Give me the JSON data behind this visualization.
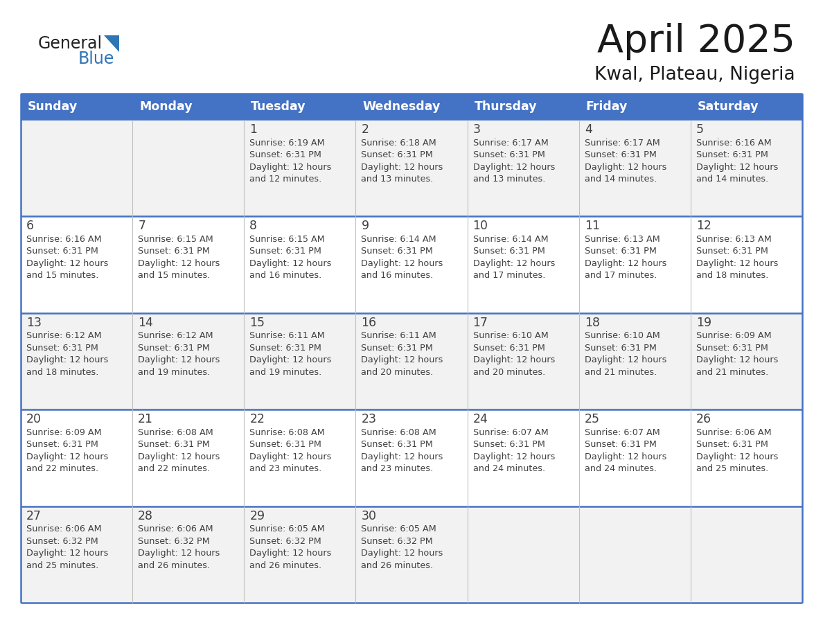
{
  "title": "April 2025",
  "subtitle": "Kwal, Plateau, Nigeria",
  "days_of_week": [
    "Sunday",
    "Monday",
    "Tuesday",
    "Wednesday",
    "Thursday",
    "Friday",
    "Saturday"
  ],
  "header_bg_color": "#4472C4",
  "header_text_color": "#FFFFFF",
  "row_color_even": "#F2F2F2",
  "row_color_odd": "#FFFFFF",
  "border_color": "#4472C4",
  "cell_divider_color": "#C0C0C0",
  "text_color": "#404040",
  "logo_general_color": "#222222",
  "logo_blue_color": "#2E75B6",
  "calendar_data": [
    [
      {
        "day": null,
        "sunrise": null,
        "sunset": null,
        "daylight": null
      },
      {
        "day": null,
        "sunrise": null,
        "sunset": null,
        "daylight": null
      },
      {
        "day": 1,
        "sunrise": "6:19 AM",
        "sunset": "6:31 PM",
        "daylight": "12 hours\nand 12 minutes."
      },
      {
        "day": 2,
        "sunrise": "6:18 AM",
        "sunset": "6:31 PM",
        "daylight": "12 hours\nand 13 minutes."
      },
      {
        "day": 3,
        "sunrise": "6:17 AM",
        "sunset": "6:31 PM",
        "daylight": "12 hours\nand 13 minutes."
      },
      {
        "day": 4,
        "sunrise": "6:17 AM",
        "sunset": "6:31 PM",
        "daylight": "12 hours\nand 14 minutes."
      },
      {
        "day": 5,
        "sunrise": "6:16 AM",
        "sunset": "6:31 PM",
        "daylight": "12 hours\nand 14 minutes."
      }
    ],
    [
      {
        "day": 6,
        "sunrise": "6:16 AM",
        "sunset": "6:31 PM",
        "daylight": "12 hours\nand 15 minutes."
      },
      {
        "day": 7,
        "sunrise": "6:15 AM",
        "sunset": "6:31 PM",
        "daylight": "12 hours\nand 15 minutes."
      },
      {
        "day": 8,
        "sunrise": "6:15 AM",
        "sunset": "6:31 PM",
        "daylight": "12 hours\nand 16 minutes."
      },
      {
        "day": 9,
        "sunrise": "6:14 AM",
        "sunset": "6:31 PM",
        "daylight": "12 hours\nand 16 minutes."
      },
      {
        "day": 10,
        "sunrise": "6:14 AM",
        "sunset": "6:31 PM",
        "daylight": "12 hours\nand 17 minutes."
      },
      {
        "day": 11,
        "sunrise": "6:13 AM",
        "sunset": "6:31 PM",
        "daylight": "12 hours\nand 17 minutes."
      },
      {
        "day": 12,
        "sunrise": "6:13 AM",
        "sunset": "6:31 PM",
        "daylight": "12 hours\nand 18 minutes."
      }
    ],
    [
      {
        "day": 13,
        "sunrise": "6:12 AM",
        "sunset": "6:31 PM",
        "daylight": "12 hours\nand 18 minutes."
      },
      {
        "day": 14,
        "sunrise": "6:12 AM",
        "sunset": "6:31 PM",
        "daylight": "12 hours\nand 19 minutes."
      },
      {
        "day": 15,
        "sunrise": "6:11 AM",
        "sunset": "6:31 PM",
        "daylight": "12 hours\nand 19 minutes."
      },
      {
        "day": 16,
        "sunrise": "6:11 AM",
        "sunset": "6:31 PM",
        "daylight": "12 hours\nand 20 minutes."
      },
      {
        "day": 17,
        "sunrise": "6:10 AM",
        "sunset": "6:31 PM",
        "daylight": "12 hours\nand 20 minutes."
      },
      {
        "day": 18,
        "sunrise": "6:10 AM",
        "sunset": "6:31 PM",
        "daylight": "12 hours\nand 21 minutes."
      },
      {
        "day": 19,
        "sunrise": "6:09 AM",
        "sunset": "6:31 PM",
        "daylight": "12 hours\nand 21 minutes."
      }
    ],
    [
      {
        "day": 20,
        "sunrise": "6:09 AM",
        "sunset": "6:31 PM",
        "daylight": "12 hours\nand 22 minutes."
      },
      {
        "day": 21,
        "sunrise": "6:08 AM",
        "sunset": "6:31 PM",
        "daylight": "12 hours\nand 22 minutes."
      },
      {
        "day": 22,
        "sunrise": "6:08 AM",
        "sunset": "6:31 PM",
        "daylight": "12 hours\nand 23 minutes."
      },
      {
        "day": 23,
        "sunrise": "6:08 AM",
        "sunset": "6:31 PM",
        "daylight": "12 hours\nand 23 minutes."
      },
      {
        "day": 24,
        "sunrise": "6:07 AM",
        "sunset": "6:31 PM",
        "daylight": "12 hours\nand 24 minutes."
      },
      {
        "day": 25,
        "sunrise": "6:07 AM",
        "sunset": "6:31 PM",
        "daylight": "12 hours\nand 24 minutes."
      },
      {
        "day": 26,
        "sunrise": "6:06 AM",
        "sunset": "6:31 PM",
        "daylight": "12 hours\nand 25 minutes."
      }
    ],
    [
      {
        "day": 27,
        "sunrise": "6:06 AM",
        "sunset": "6:32 PM",
        "daylight": "12 hours\nand 25 minutes."
      },
      {
        "day": 28,
        "sunrise": "6:06 AM",
        "sunset": "6:32 PM",
        "daylight": "12 hours\nand 26 minutes."
      },
      {
        "day": 29,
        "sunrise": "6:05 AM",
        "sunset": "6:32 PM",
        "daylight": "12 hours\nand 26 minutes."
      },
      {
        "day": 30,
        "sunrise": "6:05 AM",
        "sunset": "6:32 PM",
        "daylight": "12 hours\nand 26 minutes."
      },
      {
        "day": null,
        "sunrise": null,
        "sunset": null,
        "daylight": null
      },
      {
        "day": null,
        "sunrise": null,
        "sunset": null,
        "daylight": null
      },
      {
        "day": null,
        "sunrise": null,
        "sunset": null,
        "daylight": null
      }
    ]
  ]
}
